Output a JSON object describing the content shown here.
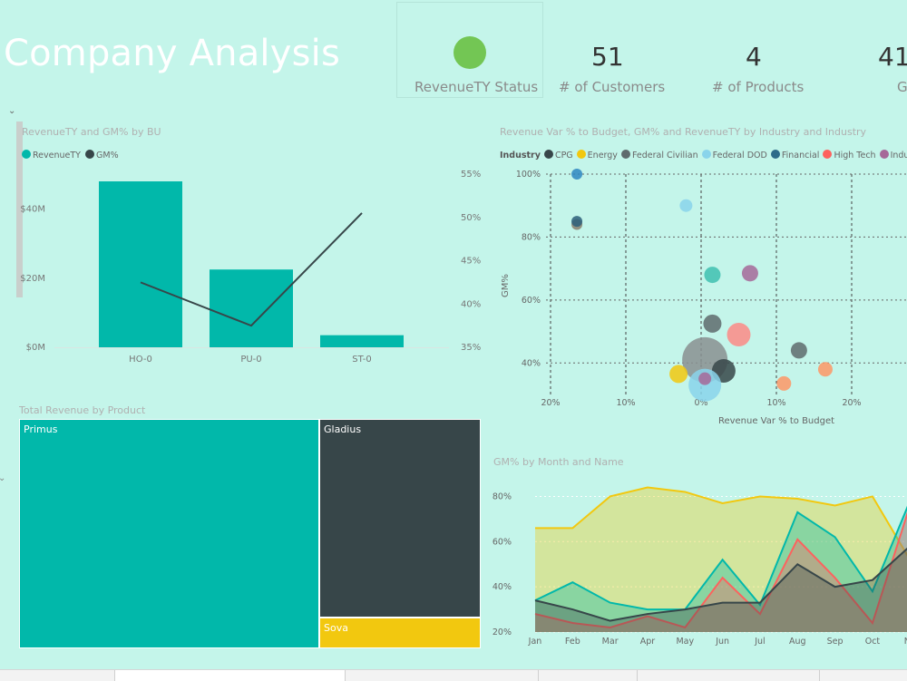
{
  "header": {
    "title": "Company Analysis",
    "status_label": "RevenueTY Status",
    "status_color": "#73c654",
    "kpis": [
      {
        "value": "51",
        "label": "# of Customers"
      },
      {
        "value": "4",
        "label": "# of Products"
      },
      {
        "value": "41",
        "label": "G"
      }
    ]
  },
  "bar_chart": {
    "title": "RevenueTY and GM% by BU",
    "legend": [
      {
        "name": "RevenueTY",
        "color": "#01b8aa"
      },
      {
        "name": "GM%",
        "color": "#374649"
      }
    ],
    "chart_data": {
      "type": "bar",
      "categories": [
        "HO-0",
        "PU-0",
        "ST-0"
      ],
      "series": [
        {
          "name": "RevenueTY",
          "values": [
            48,
            22.5,
            3.5
          ]
        },
        {
          "name": "GM%",
          "values": [
            42.5,
            37.5,
            50.5
          ]
        }
      ],
      "ylabel": "",
      "xlabel": "",
      "ylim": [
        0,
        48
      ],
      "y2lim": [
        35,
        55
      ],
      "y_ticks": [
        "$0M",
        "$20M",
        "$40M"
      ],
      "y2_ticks": [
        "35%",
        "40%",
        "45%",
        "50%",
        "55%"
      ]
    }
  },
  "scatter": {
    "title": "Revenue Var % to Budget, GM% and RevenueTY by Industry and Industry",
    "legend_title": "Industry",
    "legend": [
      {
        "name": "CPG",
        "color": "#374649"
      },
      {
        "name": "Energy",
        "color": "#f2c80f"
      },
      {
        "name": "Federal Civilian",
        "color": "#5f6b6d"
      },
      {
        "name": "Federal DOD",
        "color": "#8ad4eb"
      },
      {
        "name": "Financial",
        "color": "#2d6b8a"
      },
      {
        "name": "High Tech",
        "color": "#fd625e"
      },
      {
        "name": "Indus",
        "color": "#a66999"
      }
    ],
    "chart_data": {
      "type": "scatter",
      "xlabel": "Revenue Var % to Budget",
      "ylabel": "GM%",
      "x_ticks": [
        "20%",
        "10%",
        "0%",
        "10%",
        "20%"
      ],
      "y_ticks": [
        "40%",
        "60%",
        "80%",
        "100%"
      ],
      "xlim": [
        -20,
        28
      ],
      "ylim": [
        30,
        100
      ],
      "points": [
        {
          "x": -16.5,
          "y": 100,
          "r": 6,
          "color": "#2e86c1"
        },
        {
          "x": -16.5,
          "y": 84,
          "r": 6,
          "color": "#8a7f6d"
        },
        {
          "x": -16.5,
          "y": 85,
          "r": 6,
          "color": "#2d5f7a"
        },
        {
          "x": -2,
          "y": 90,
          "r": 7,
          "color": "#8ad4eb"
        },
        {
          "x": 1.5,
          "y": 68,
          "r": 9,
          "color": "#3fbfb0"
        },
        {
          "x": 6.5,
          "y": 68.5,
          "r": 9,
          "color": "#a66999"
        },
        {
          "x": 1.5,
          "y": 52.5,
          "r": 10,
          "color": "#5f6b6d"
        },
        {
          "x": 5,
          "y": 49,
          "r": 13,
          "color": "#fd8a86"
        },
        {
          "x": 13,
          "y": 44,
          "r": 9,
          "color": "#5f6b6d"
        },
        {
          "x": 0.5,
          "y": 41,
          "r": 25,
          "color": "#8a8f90"
        },
        {
          "x": 3,
          "y": 37.5,
          "r": 13,
          "color": "#374649"
        },
        {
          "x": -3,
          "y": 36.5,
          "r": 10,
          "color": "#f2c80f"
        },
        {
          "x": 0.5,
          "y": 33,
          "r": 18,
          "color": "#8ad4eb"
        },
        {
          "x": 0.5,
          "y": 35,
          "r": 7,
          "color": "#a66999"
        },
        {
          "x": 16.5,
          "y": 38,
          "r": 8,
          "color": "#fe9666"
        },
        {
          "x": 11,
          "y": 33.5,
          "r": 8,
          "color": "#fe9666"
        }
      ]
    }
  },
  "treemap": {
    "title": "Total Revenue by Product",
    "chart_data": {
      "type": "treemap",
      "items": [
        {
          "name": "Primus",
          "value": 63,
          "color": "#01b8aa"
        },
        {
          "name": "Gladius",
          "value": 31,
          "color": "#374649"
        },
        {
          "name": "Sova",
          "value": 6,
          "color": "#f2c80f"
        }
      ]
    }
  },
  "area_chart": {
    "title": "GM% by Month and Name",
    "chart_data": {
      "type": "area",
      "categories": [
        "Jan",
        "Feb",
        "Mar",
        "Apr",
        "May",
        "Jun",
        "Jul",
        "Aug",
        "Sep",
        "Oct",
        "No"
      ],
      "ylim": [
        20,
        85
      ],
      "y_ticks": [
        "20%",
        "40%",
        "60%",
        "80%"
      ],
      "series": [
        {
          "name": "",
          "color": "#f2c80f",
          "values": [
            66,
            66,
            80,
            84,
            82,
            77,
            80,
            79,
            76,
            80,
            52
          ]
        },
        {
          "name": "",
          "color": "#01b8aa",
          "values": [
            34,
            42,
            33,
            30,
            30,
            52,
            32,
            73,
            62,
            38,
            78
          ]
        },
        {
          "name": "",
          "color": "#fd625e",
          "values": [
            28,
            24,
            22,
            27,
            22,
            44,
            28,
            61,
            44,
            24,
            76
          ]
        },
        {
          "name": "",
          "color": "#374649",
          "values": [
            34,
            30,
            25,
            28,
            30,
            33,
            33,
            50,
            40,
            43,
            58
          ]
        }
      ]
    }
  }
}
